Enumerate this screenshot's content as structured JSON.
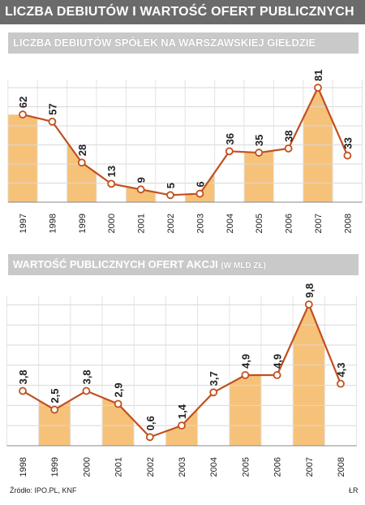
{
  "main_title": "LICZBA DEBIUTÓW I WARTOŚĆ OFERT PUBLICZNYCH",
  "source": "Źródło: IPO.PL, KNF",
  "credit": "ŁR",
  "colors": {
    "header_bg": "#6b6b6b",
    "panel_head_bg": "#c9c9c9",
    "line": "#c0501f",
    "fill": "#f6c27a"
  },
  "chart_data": [
    {
      "type": "area",
      "title": "LICZBA DEBIUTÓW SPÓŁEK NA WARSZAWSKIEJ GIEŁDZIE",
      "unit": "",
      "x": [
        "1997",
        "1998",
        "1999",
        "2000",
        "2001",
        "2002",
        "2003",
        "2004",
        "2005",
        "2006",
        "2007",
        "2008"
      ],
      "values": [
        62,
        57,
        28,
        13,
        9,
        5,
        6,
        36,
        35,
        38,
        81,
        33
      ],
      "value_labels": [
        "62",
        "57",
        "28",
        "13",
        "9",
        "5",
        "6",
        "36",
        "35",
        "38",
        "81",
        "33"
      ],
      "ylim": [
        0,
        81
      ],
      "grid": true
    },
    {
      "type": "area",
      "title": "WARTOŚĆ PUBLICZNYCH OFERT AKCJI",
      "unit": "(W MLD ZŁ)",
      "x": [
        "1998",
        "1999",
        "2000",
        "2001",
        "2002",
        "2003",
        "2004",
        "2005",
        "2006",
        "2007",
        "2008"
      ],
      "values": [
        3.8,
        2.5,
        3.8,
        2.9,
        0.6,
        1.4,
        3.7,
        4.9,
        4.9,
        9.8,
        4.3
      ],
      "value_labels": [
        "3,8",
        "2,5",
        "3,8",
        "2,9",
        "0,6",
        "1,4",
        "3,7",
        "4,9",
        "4,9",
        "9,8",
        "4,3"
      ],
      "ylim": [
        0,
        9.8
      ],
      "grid": true
    }
  ]
}
